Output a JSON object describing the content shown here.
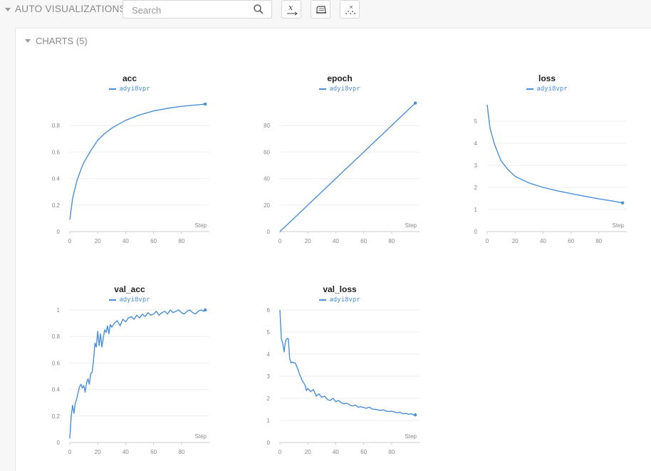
{
  "header": {
    "section_title": "AUTO VISUALIZATIONS",
    "search": {
      "placeholder": "Search",
      "value": ""
    },
    "tools": [
      {
        "name": "x-axis-icon"
      },
      {
        "name": "smoothing-icon"
      },
      {
        "name": "outliers-icon"
      }
    ]
  },
  "panel": {
    "title": "CHARTS (5)"
  },
  "colors": {
    "series": "#4a90d9",
    "grid": "#eeeeee"
  },
  "chart_data": [
    {
      "type": "line",
      "title": "acc",
      "series": [
        {
          "name": "adyi8vpr",
          "x": [
            0,
            2,
            5,
            8,
            10,
            15,
            20,
            25,
            30,
            35,
            40,
            50,
            60,
            70,
            80,
            90,
            97
          ],
          "values": [
            0.09,
            0.25,
            0.38,
            0.47,
            0.52,
            0.61,
            0.69,
            0.74,
            0.78,
            0.81,
            0.84,
            0.88,
            0.91,
            0.93,
            0.945,
            0.955,
            0.962
          ]
        }
      ],
      "xlabel": "Step",
      "ylabel": "",
      "xlim": [
        0,
        100
      ],
      "ylim": [
        0,
        1.0
      ],
      "xticks": [
        0,
        20,
        40,
        60,
        80
      ],
      "yticks": [
        0,
        0.2,
        0.4,
        0.6,
        0.8
      ],
      "ytick_labels": [
        "0",
        "0.2",
        "0.4",
        "0.6",
        "0.8"
      ]
    },
    {
      "type": "line",
      "title": "epoch",
      "series": [
        {
          "name": "adyi8vpr",
          "x": [
            0,
            97
          ],
          "values": [
            0,
            97
          ]
        }
      ],
      "xlabel": "Step",
      "ylabel": "",
      "xlim": [
        0,
        100
      ],
      "ylim": [
        0,
        100
      ],
      "xticks": [
        0,
        20,
        40,
        60,
        80
      ],
      "yticks": [
        0,
        20,
        40,
        60,
        80
      ],
      "ytick_labels": [
        "0",
        "20",
        "40",
        "60",
        "80"
      ]
    },
    {
      "type": "line",
      "title": "loss",
      "series": [
        {
          "name": "adyi8vpr",
          "x": [
            0,
            2,
            5,
            8,
            10,
            15,
            20,
            25,
            30,
            40,
            50,
            60,
            70,
            80,
            90,
            97
          ],
          "values": [
            5.75,
            4.7,
            4.0,
            3.5,
            3.2,
            2.8,
            2.5,
            2.35,
            2.2,
            2.0,
            1.85,
            1.72,
            1.6,
            1.48,
            1.38,
            1.3
          ]
        }
      ],
      "xlabel": "Step",
      "ylabel": "",
      "xlim": [
        0,
        100
      ],
      "ylim": [
        0,
        6
      ],
      "xticks": [
        0,
        20,
        40,
        60,
        80
      ],
      "yticks": [
        0,
        1,
        2,
        3,
        4,
        5
      ],
      "ytick_labels": [
        "0",
        "1",
        "2",
        "3",
        "4",
        "5"
      ]
    },
    {
      "type": "line",
      "title": "val_acc",
      "series": [
        {
          "name": "adyi8vpr",
          "x": [
            0,
            1,
            2,
            3,
            4,
            5,
            6,
            7,
            8,
            9,
            10,
            11,
            12,
            13,
            14,
            15,
            16,
            17,
            18,
            19,
            20,
            21,
            22,
            23,
            24,
            25,
            26,
            27,
            28,
            29,
            30,
            32,
            34,
            36,
            38,
            40,
            42,
            44,
            46,
            48,
            50,
            52,
            54,
            56,
            58,
            60,
            62,
            64,
            66,
            68,
            70,
            72,
            74,
            76,
            78,
            80,
            82,
            84,
            86,
            88,
            90,
            92,
            94,
            96,
            97
          ],
          "values": [
            0.03,
            0.2,
            0.28,
            0.22,
            0.3,
            0.33,
            0.38,
            0.42,
            0.44,
            0.41,
            0.43,
            0.38,
            0.45,
            0.48,
            0.44,
            0.52,
            0.53,
            0.62,
            0.75,
            0.72,
            0.84,
            0.73,
            0.82,
            0.72,
            0.79,
            0.85,
            0.83,
            0.88,
            0.82,
            0.89,
            0.87,
            0.9,
            0.92,
            0.88,
            0.93,
            0.91,
            0.94,
            0.95,
            0.93,
            0.96,
            0.94,
            0.97,
            0.95,
            0.98,
            0.96,
            0.97,
            0.99,
            0.96,
            0.98,
            0.99,
            0.97,
            1.0,
            0.98,
            0.99,
            1.0,
            0.98,
            0.97,
            0.99,
            1.0,
            0.98,
            0.97,
            0.99,
            1.0,
            0.99,
            1.0
          ]
        }
      ],
      "xlabel": "Step",
      "ylabel": "",
      "xlim": [
        0,
        100
      ],
      "ylim": [
        0,
        1.0
      ],
      "xticks": [
        0,
        20,
        40,
        60,
        80
      ],
      "yticks": [
        0,
        0.2,
        0.4,
        0.6,
        0.8,
        1.0
      ],
      "ytick_labels": [
        "0",
        "0.2",
        "0.4",
        "0.6",
        "0.8",
        "1"
      ]
    },
    {
      "type": "line",
      "title": "val_loss",
      "series": [
        {
          "name": "adyi8vpr",
          "x": [
            0,
            1,
            2,
            3,
            4,
            5,
            6,
            7,
            8,
            9,
            10,
            11,
            12,
            13,
            14,
            15,
            16,
            17,
            18,
            19,
            20,
            22,
            24,
            26,
            28,
            30,
            32,
            34,
            36,
            38,
            40,
            42,
            44,
            46,
            48,
            50,
            52,
            54,
            56,
            58,
            60,
            62,
            64,
            66,
            68,
            70,
            72,
            74,
            76,
            78,
            80,
            82,
            84,
            86,
            88,
            90,
            92,
            94,
            96,
            97
          ],
          "values": [
            6.0,
            4.7,
            4.5,
            4.1,
            4.6,
            4.7,
            4.7,
            3.8,
            3.6,
            3.65,
            3.6,
            3.6,
            3.45,
            3.3,
            3.1,
            2.95,
            2.8,
            2.7,
            2.6,
            2.35,
            2.45,
            2.3,
            2.4,
            2.1,
            2.2,
            2.05,
            2.1,
            1.95,
            1.9,
            2.0,
            1.85,
            1.9,
            1.8,
            1.75,
            1.78,
            1.7,
            1.65,
            1.7,
            1.6,
            1.62,
            1.58,
            1.55,
            1.6,
            1.52,
            1.5,
            1.48,
            1.45,
            1.48,
            1.42,
            1.4,
            1.42,
            1.38,
            1.35,
            1.37,
            1.3,
            1.32,
            1.28,
            1.3,
            1.25,
            1.25
          ]
        }
      ],
      "xlabel": "Step",
      "ylabel": "",
      "xlim": [
        0,
        100
      ],
      "ylim": [
        0,
        6
      ],
      "xticks": [
        0,
        20,
        40,
        60,
        80
      ],
      "yticks": [
        0,
        1,
        2,
        3,
        4,
        5,
        6
      ],
      "ytick_labels": [
        "0",
        "1",
        "2",
        "3",
        "4",
        "5",
        "6"
      ]
    }
  ]
}
